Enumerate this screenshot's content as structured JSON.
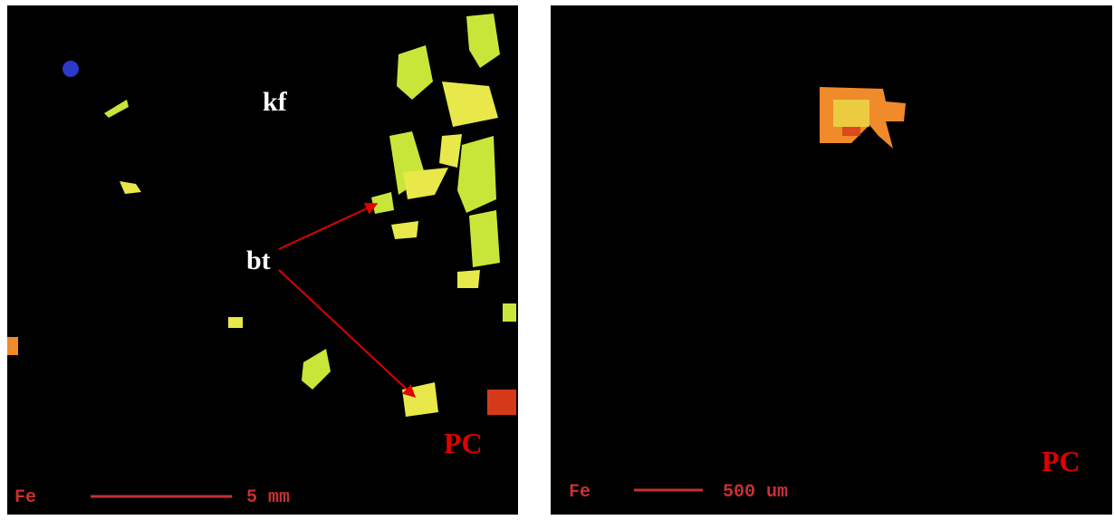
{
  "panels": [
    {
      "labels": {
        "kf": "kf",
        "bt": "bt",
        "corner": "PC"
      },
      "element": "Fe",
      "scale": "5 mm"
    },
    {
      "labels": {
        "corner": "PC"
      },
      "element": "Fe",
      "scale": "500 um"
    }
  ]
}
